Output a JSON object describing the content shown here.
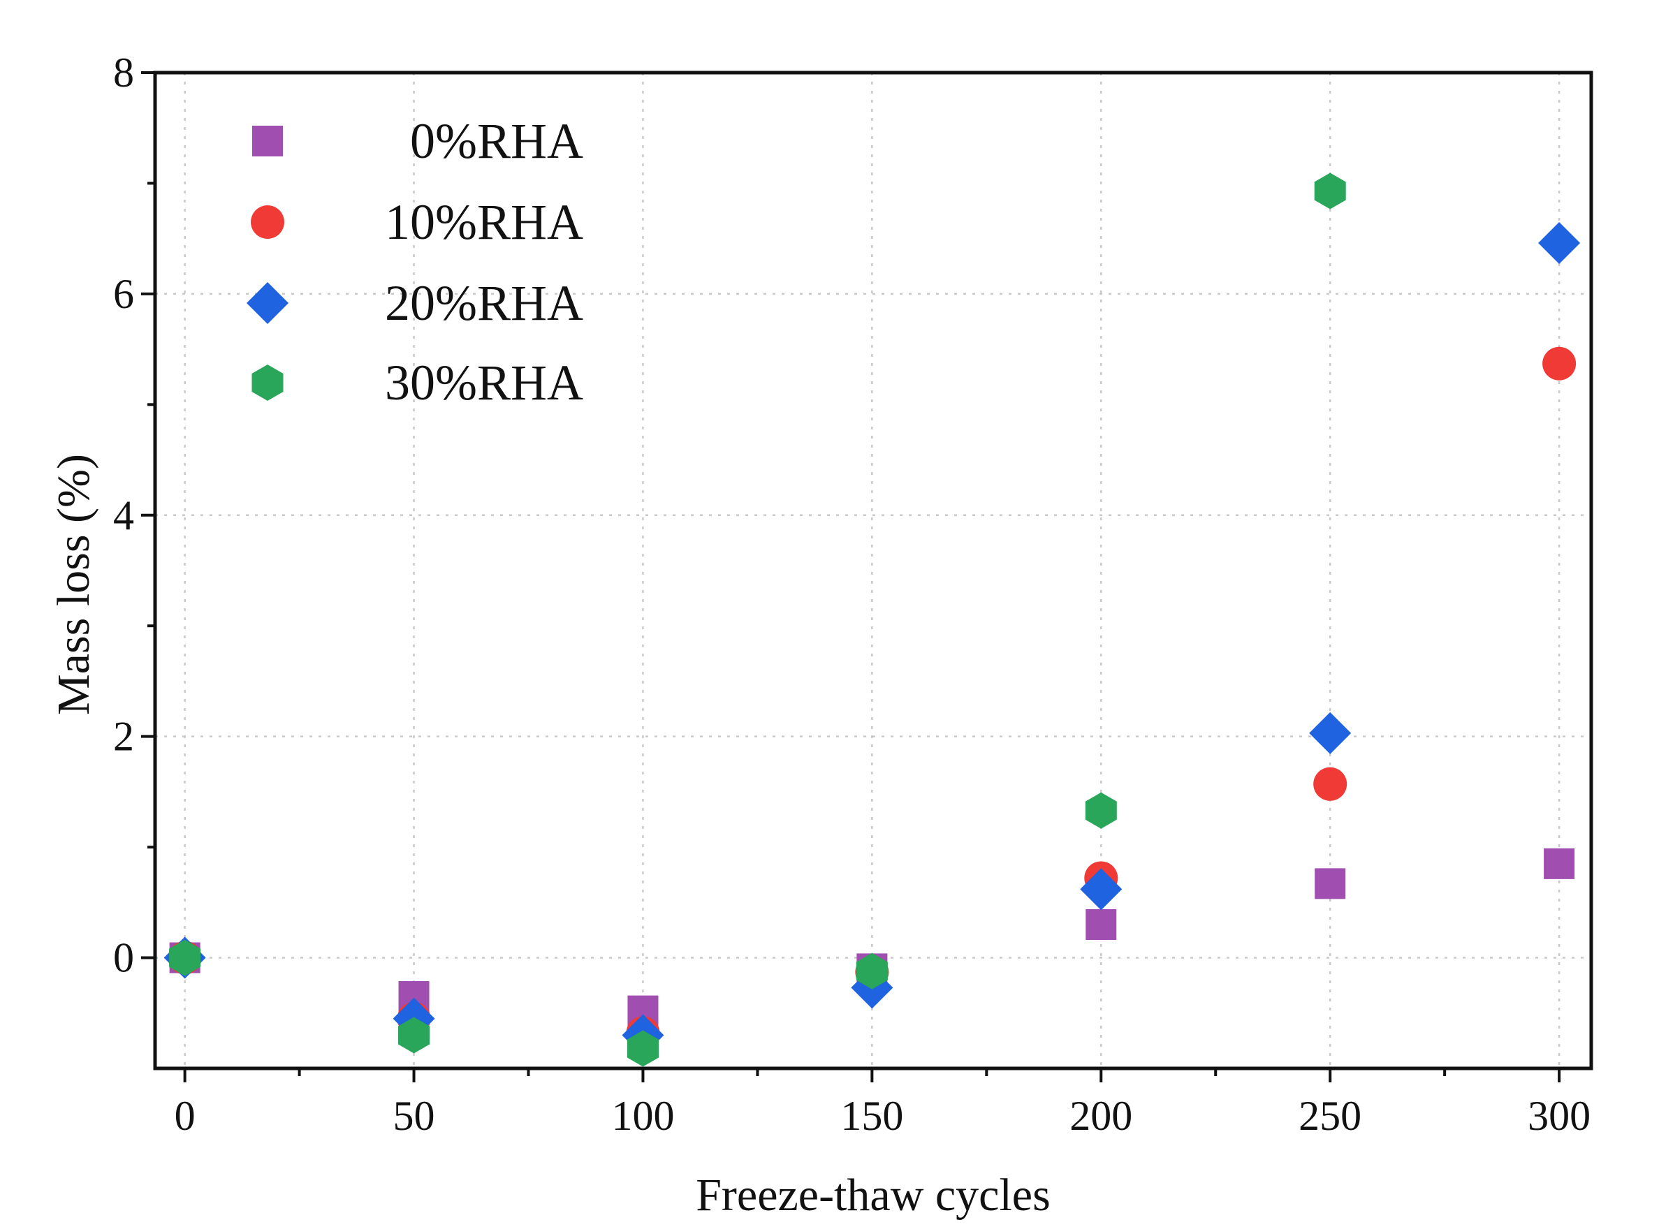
{
  "chart_data": {
    "type": "scatter",
    "title": "",
    "xlabel": "Freeze-thaw cycles",
    "ylabel": "Mass loss (%)",
    "xlim": [
      -6.5,
      307
    ],
    "ylim": [
      -1.0,
      8.0
    ],
    "xticks": [
      0,
      50,
      100,
      150,
      200,
      250,
      300
    ],
    "xticks_minor": [
      25,
      75,
      125,
      175,
      225,
      275
    ],
    "yticks": [
      0,
      2,
      4,
      6,
      8
    ],
    "yticks_minor": [
      1,
      3,
      5,
      7
    ],
    "grid": true,
    "legend_position": "top-left",
    "x": [
      0,
      50,
      100,
      150,
      200,
      250,
      300
    ],
    "series": [
      {
        "name": "0%RHA",
        "marker": "square",
        "color": "#a04eb0",
        "x": [
          0,
          50,
          100,
          150,
          200,
          250,
          300
        ],
        "values": [
          0,
          -0.35,
          -0.48,
          -0.1,
          0.3,
          0.67,
          0.85
        ]
      },
      {
        "name": "10%RHA",
        "marker": "circle",
        "color": "#ef3a36",
        "x": [
          0,
          50,
          100,
          150,
          200,
          250,
          300
        ],
        "values": [
          0,
          -0.55,
          -0.68,
          -0.13,
          0.72,
          1.57,
          5.37
        ]
      },
      {
        "name": "20%RHA",
        "marker": "diamond",
        "color": "#1f63e0",
        "x": [
          0,
          50,
          100,
          150,
          200,
          250,
          300
        ],
        "values": [
          0,
          -0.55,
          -0.7,
          -0.27,
          0.62,
          2.03,
          6.46
        ]
      },
      {
        "name": "30%RHA",
        "marker": "hexagon",
        "color": "#2aa65a",
        "x": [
          0,
          50,
          100,
          150,
          200,
          250
        ],
        "values": [
          0,
          -0.7,
          -0.82,
          -0.12,
          1.33,
          6.93
        ]
      }
    ]
  }
}
